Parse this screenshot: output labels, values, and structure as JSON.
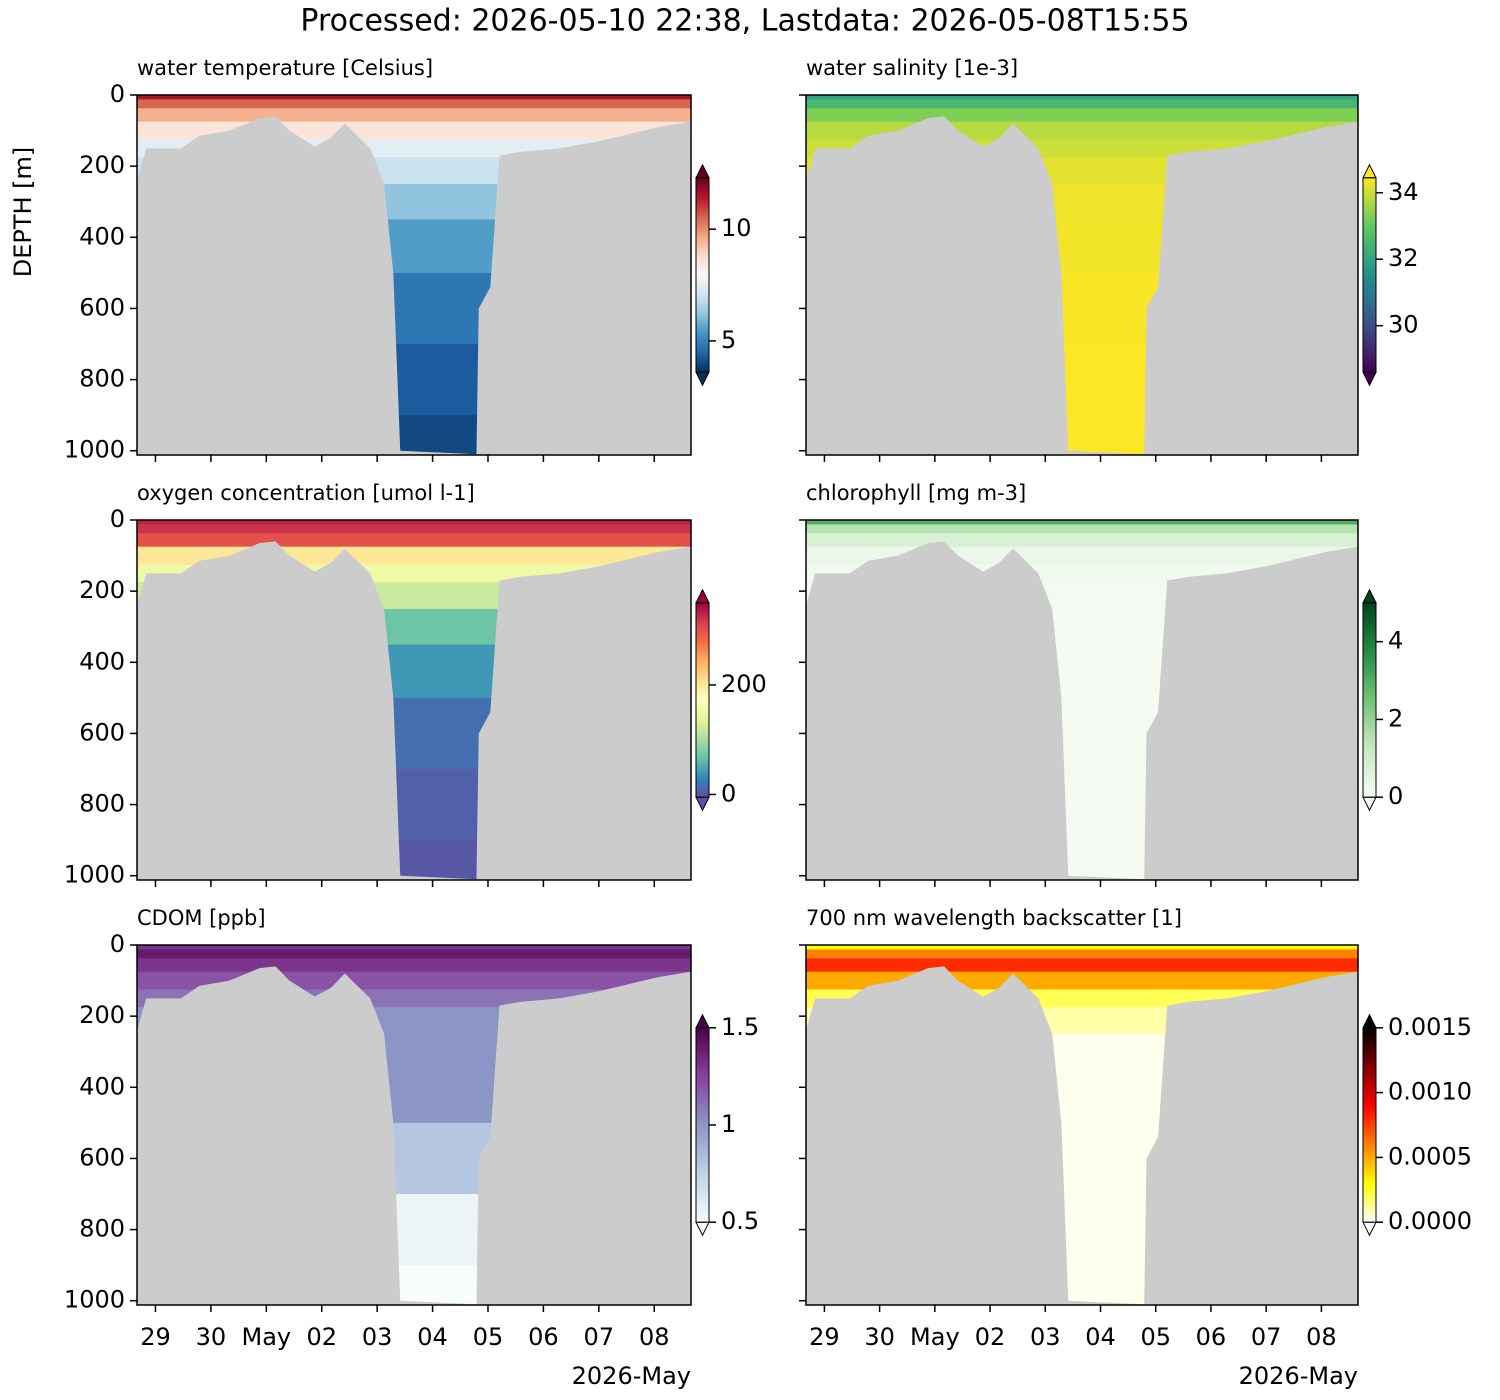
{
  "title": "Processed: 2026-05-10 22:38, Lastdata: 2026-05-08T15:55",
  "axes": {
    "ylabel": "DEPTH [m]",
    "ylim": [
      1012,
      0
    ],
    "yticks": [
      0,
      200,
      400,
      600,
      800,
      1000
    ],
    "xlim": [
      "2026-04-28T16:00",
      "2026-05-08T15:55"
    ],
    "xticks": [
      {
        "value": "2026-04-29T00:00",
        "label": "29"
      },
      {
        "value": "2026-04-30T00:00",
        "label": "30"
      },
      {
        "value": "2026-05-01T00:00",
        "label": "May"
      },
      {
        "value": "2026-05-02T00:00",
        "label": "02"
      },
      {
        "value": "2026-05-03T00:00",
        "label": "03"
      },
      {
        "value": "2026-05-04T00:00",
        "label": "04"
      },
      {
        "value": "2026-05-05T00:00",
        "label": "05"
      },
      {
        "value": "2026-05-06T00:00",
        "label": "06"
      },
      {
        "value": "2026-05-07T00:00",
        "label": "07"
      },
      {
        "value": "2026-05-08T00:00",
        "label": "08"
      }
    ],
    "x_offset_label": "2026-May",
    "mask_color": "#cccccc",
    "seafloor": {
      "x": [
        "2026-04-28T16:00",
        "2026-04-28T20:00",
        "2026-04-29T11:00",
        "2026-04-29T19:00",
        "2026-04-30T08:00",
        "2026-04-30T21:00",
        "2026-05-01T04:00",
        "2026-05-01T10:00",
        "2026-05-01T21:00",
        "2026-05-02T04:00",
        "2026-05-02T10:00",
        "2026-05-02T21:00",
        "2026-05-03T03:00",
        "2026-05-03T07:00",
        "2026-05-03T10:00",
        "2026-05-04T19:00",
        "2026-05-04T20:00",
        "2026-05-05T01:00",
        "2026-05-05T05:00",
        "2026-05-05T14:00",
        "2026-05-06T07:00",
        "2026-05-07T00:00",
        "2026-05-07T13:00",
        "2026-05-08T02:00",
        "2026-05-08T15:55"
      ],
      "depth": [
        240,
        150,
        150,
        115,
        100,
        65,
        60,
        100,
        145,
        120,
        80,
        150,
        250,
        500,
        1000,
        1010,
        600,
        540,
        170,
        160,
        150,
        130,
        110,
        90,
        75
      ]
    }
  },
  "chart_data": [
    {
      "type": "heatmap",
      "title": "water temperature [Celsius]",
      "depth": [
        0,
        25,
        50,
        100,
        150,
        200,
        300,
        400,
        600,
        800,
        1000
      ],
      "values": [
        11.5,
        10.5,
        9.5,
        8.5,
        7.5,
        7,
        6.2,
        5.5,
        4.8,
        4.3,
        4.0
      ],
      "clim": [
        3.6,
        12.3
      ],
      "cticks": [
        5,
        10
      ],
      "colormap": [
        "#053061",
        "#2166ac",
        "#4393c3",
        "#92c5de",
        "#d1e5f0",
        "#f7f7f7",
        "#fddbc7",
        "#f4a582",
        "#d6604d",
        "#b2182b",
        "#67001f"
      ]
    },
    {
      "type": "heatmap",
      "title": "water salinity [1e-3]",
      "depth": [
        0,
        25,
        50,
        100,
        150,
        200,
        300,
        400,
        600,
        800,
        1000
      ],
      "values": [
        32,
        32.5,
        33.3,
        33.8,
        34.0,
        34.2,
        34.3,
        34.35,
        34.4,
        34.45,
        34.5
      ],
      "clim": [
        28.6,
        34.45
      ],
      "cticks": [
        30,
        32,
        34
      ],
      "colormap": [
        "#440154",
        "#3b528b",
        "#21918c",
        "#5ec962",
        "#fde725"
      ]
    },
    {
      "type": "heatmap",
      "title": "oxygen concentration [umol l-1]",
      "depth": [
        0,
        25,
        50,
        100,
        150,
        200,
        300,
        400,
        600,
        800,
        1000
      ],
      "values": [
        330,
        320,
        300,
        200,
        150,
        120,
        70,
        40,
        15,
        5,
        0
      ],
      "clim": [
        -5,
        350
      ],
      "cticks": [
        0,
        200
      ],
      "colormap": [
        "#5e4fa2",
        "#3288bd",
        "#66c2a5",
        "#abdda4",
        "#e6f598",
        "#ffffbf",
        "#fee08b",
        "#fdae61",
        "#f46d43",
        "#d53e4f",
        "#9e0142"
      ]
    },
    {
      "type": "heatmap",
      "title": "chlorophyll [mg m-3]",
      "depth": [
        0,
        25,
        50,
        100,
        150,
        200,
        300,
        400,
        600,
        800,
        1000
      ],
      "values": [
        3.0,
        1.5,
        0.8,
        0.3,
        0.15,
        0.1,
        0.05,
        0.05,
        0.05,
        0.05,
        0.05
      ],
      "clim": [
        0,
        5
      ],
      "cticks": [
        0,
        2,
        4
      ],
      "colormap": [
        "#f7fcf5",
        "#c7e9c0",
        "#74c476",
        "#238b45",
        "#00441b"
      ]
    },
    {
      "type": "heatmap",
      "title": "CDOM [ppb]",
      "depth": [
        0,
        25,
        50,
        100,
        150,
        200,
        300,
        400,
        600,
        800,
        1000
      ],
      "values": [
        1.3,
        1.4,
        1.3,
        1.2,
        1.1,
        1.0,
        1.0,
        1.0,
        0.8,
        0.55,
        0.5
      ],
      "clim": [
        0.5,
        1.5
      ],
      "cticks": [
        0.5,
        1.0,
        1.5
      ],
      "colormap": [
        "#f7fcfd",
        "#bfd3e6",
        "#8c96c6",
        "#88419d",
        "#4d004b"
      ]
    },
    {
      "type": "heatmap",
      "title": "700 nm wavelength backscatter [1]",
      "depth": [
        0,
        25,
        50,
        100,
        150,
        200,
        300,
        400,
        600,
        800,
        1000
      ],
      "values": [
        0.0003,
        0.0006,
        0.0008,
        0.0005,
        0.0002,
        0.0001,
        2e-05,
        2e-05,
        2e-05,
        2e-05,
        2e-05
      ],
      "clim": [
        0,
        0.0015
      ],
      "cticks": [
        {
          "value": 0,
          "label": "0.0000"
        },
        {
          "value": 0.0005,
          "label": "0.0005"
        },
        {
          "value": 0.001,
          "label": "0.0010"
        },
        {
          "value": 0.0015,
          "label": "0.0015"
        }
      ],
      "colormap": [
        "#ffffff",
        "#ffff00",
        "#ff8000",
        "#ff0000",
        "#800000",
        "#000000"
      ]
    }
  ]
}
